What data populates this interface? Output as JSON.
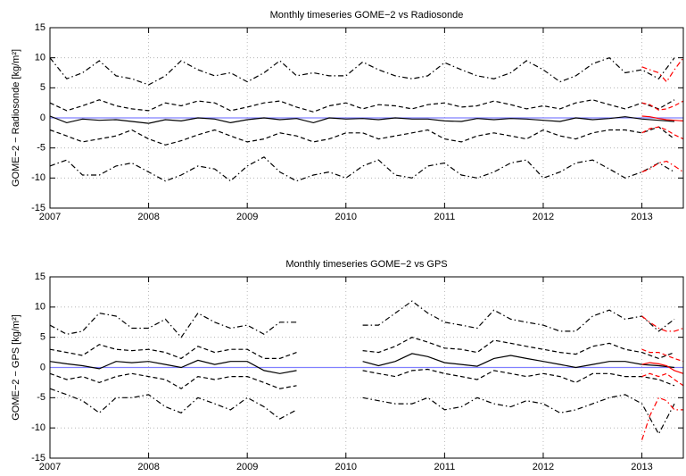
{
  "chart_data": [
    {
      "type": "line",
      "title": "Monthly timeseries GOME−2 vs Radiosonde",
      "y_label": "GOME−2 − Radiosonde [kg/m²]",
      "xlim": [
        2007,
        2013.42
      ],
      "xticks": [
        2007,
        2008,
        2009,
        2010,
        2011,
        2012,
        2013
      ],
      "ylim": [
        -15,
        15
      ],
      "yticks": [
        -15,
        -10,
        -5,
        0,
        5,
        10,
        15
      ],
      "grid": true,
      "hlines": [
        {
          "value": 0,
          "color": "#8080ff"
        }
      ],
      "x": [
        2007,
        2007.17,
        2007.33,
        2007.5,
        2007.67,
        2007.83,
        2008,
        2008.17,
        2008.33,
        2008.5,
        2008.67,
        2008.83,
        2009,
        2009.17,
        2009.33,
        2009.5,
        2009.67,
        2009.83,
        2010,
        2010.17,
        2010.33,
        2010.5,
        2010.67,
        2010.83,
        2011,
        2011.17,
        2011.33,
        2011.5,
        2011.67,
        2011.83,
        2012,
        2012.17,
        2012.33,
        2012.5,
        2012.67,
        2012.83,
        2013,
        2013.17,
        2013.33
      ],
      "series": [
        {
          "color": "#000000",
          "dash": "solid",
          "values": [
            0.3,
            -0.8,
            -0.2,
            -0.4,
            -0.3,
            -0.6,
            -0.9,
            -0.3,
            -0.5,
            0,
            -0.2,
            -0.8,
            -0.3,
            0,
            -0.3,
            -0.1,
            -0.8,
            0,
            -0.2,
            -0.1,
            -0.3,
            0,
            -0.2,
            -0.2,
            -0.5,
            -0.6,
            -0.1,
            -0.3,
            -0.1,
            -0.2,
            -0.4,
            -0.6,
            0,
            -0.3,
            -0.1,
            0.2,
            -0.2,
            -0.4,
            -0.6
          ]
        },
        {
          "color": "#000000",
          "dash": "dashed",
          "values": [
            2.5,
            1.2,
            2.0,
            3.0,
            2.0,
            1.5,
            1.2,
            2.5,
            2.0,
            2.8,
            2.5,
            1.2,
            1.8,
            2.5,
            2.8,
            1.8,
            1.0,
            2.0,
            2.5,
            1.5,
            2.2,
            2.0,
            1.5,
            2.2,
            2.5,
            1.8,
            2.0,
            2.8,
            2.2,
            1.5,
            2.0,
            1.5,
            2.5,
            3.0,
            2.2,
            1.5,
            2.5,
            1.5,
            3.0
          ]
        },
        {
          "color": "#000000",
          "dash": "dashed",
          "values": [
            -2,
            -3,
            -4,
            -3.5,
            -3,
            -2,
            -3.5,
            -4.5,
            -3.8,
            -2.8,
            -2,
            -3,
            -4,
            -3.5,
            -2.5,
            -3,
            -4,
            -3.5,
            -2.5,
            -2.5,
            -3.5,
            -3,
            -2.5,
            -2,
            -3.5,
            -4,
            -3,
            -2.5,
            -3,
            -3.5,
            -2,
            -3,
            -3.5,
            -2.5,
            -2,
            -2,
            -2.5,
            -1.5,
            -3.5
          ]
        },
        {
          "color": "#000000",
          "dash": "dashdot",
          "values": [
            10,
            6.5,
            7.5,
            9.5,
            7,
            6.5,
            5.5,
            7,
            9.5,
            8,
            7,
            7.5,
            6,
            7.5,
            9.5,
            7,
            7.5,
            7,
            7,
            9.3,
            8,
            7,
            6.5,
            7,
            9.2,
            8,
            7,
            6.5,
            7.5,
            9.5,
            8,
            6,
            7,
            9,
            10,
            7.5,
            8,
            6.5,
            10
          ]
        },
        {
          "color": "#000000",
          "dash": "dashdot",
          "values": [
            -8,
            -7,
            -9.5,
            -9.5,
            -8,
            -7.5,
            -9,
            -10.5,
            -9.5,
            -8,
            -8.5,
            -10.5,
            -8,
            -6.5,
            -9,
            -10.5,
            -9.5,
            -9,
            -10,
            -8,
            -7,
            -9.5,
            -10,
            -8,
            -7.5,
            -9.5,
            -10,
            -9,
            -7.5,
            -7,
            -10,
            -9,
            -7.5,
            -7,
            -8.5,
            -10,
            -9,
            -7.5,
            -9
          ]
        },
        {
          "color": "#ff0000",
          "dash": "solid",
          "x": [
            2013,
            2013.08,
            2013.17,
            2013.25,
            2013.33,
            2013.42
          ],
          "values": [
            0.3,
            0.2,
            -0.1,
            -0.3,
            -0.4,
            -0.5
          ]
        },
        {
          "color": "#ff0000",
          "dash": "dashed",
          "x": [
            2013,
            2013.08,
            2013.17,
            2013.25,
            2013.33,
            2013.42
          ],
          "values": [
            2.5,
            2.2,
            1.3,
            1.5,
            2,
            2.8
          ]
        },
        {
          "color": "#ff0000",
          "dash": "dashed",
          "x": [
            2013,
            2013.08,
            2013.17,
            2013.25,
            2013.33,
            2013.42
          ],
          "values": [
            -2.5,
            -1.8,
            -1.5,
            -2,
            -2.8,
            -3.5
          ]
        },
        {
          "color": "#ff0000",
          "dash": "dashdot",
          "x": [
            2013,
            2013.08,
            2013.17,
            2013.25,
            2013.33,
            2013.42
          ],
          "values": [
            8.5,
            8,
            7.5,
            6,
            8,
            10
          ]
        },
        {
          "color": "#ff0000",
          "dash": "dashdot",
          "x": [
            2013,
            2013.08,
            2013.17,
            2013.25,
            2013.33,
            2013.42
          ],
          "values": [
            -9,
            -8.5,
            -7.5,
            -7.2,
            -8,
            -9
          ]
        }
      ]
    },
    {
      "type": "line",
      "title": "Monthly timeseries GOME−2 vs GPS",
      "y_label": "GOME−2 − GPS [kg/m²]",
      "xlim": [
        2007,
        2013.42
      ],
      "xticks": [
        2007,
        2008,
        2009,
        2010,
        2011,
        2012,
        2013
      ],
      "ylim": [
        -15,
        15
      ],
      "yticks": [
        -15,
        -10,
        -5,
        0,
        5,
        10,
        15
      ],
      "grid": true,
      "hlines": [
        {
          "value": 0,
          "color": "#8080ff"
        }
      ],
      "x": [
        2007,
        2007.17,
        2007.33,
        2007.5,
        2007.67,
        2007.83,
        2008,
        2008.17,
        2008.33,
        2008.5,
        2008.67,
        2008.83,
        2009,
        2009.17,
        2009.33,
        2009.5,
        2009.67,
        2009.83,
        2010,
        2010.17,
        2010.33,
        2010.5,
        2010.67,
        2010.83,
        2011,
        2011.17,
        2011.33,
        2011.5,
        2011.67,
        2011.83,
        2012,
        2012.17,
        2012.33,
        2012.5,
        2012.67,
        2012.83,
        2013,
        2013.17,
        2013.33
      ],
      "series": [
        {
          "color": "#000000",
          "dash": "solid",
          "values": [
            1,
            0.6,
            0.3,
            -0.2,
            1,
            0.8,
            1,
            0.5,
            0,
            1.2,
            0.5,
            1,
            1,
            -0.5,
            -1,
            -0.5,
            null,
            null,
            null,
            1,
            0.3,
            1,
            2.3,
            1.8,
            0.8,
            0.5,
            0.2,
            1.5,
            2,
            1.5,
            1,
            0.5,
            0,
            0.5,
            1,
            1,
            0.5,
            0.3,
            0
          ]
        },
        {
          "color": "#000000",
          "dash": "dashed",
          "values": [
            3,
            2.5,
            2,
            3.8,
            3,
            2.8,
            3,
            2.5,
            1.5,
            3.5,
            2.5,
            3,
            3,
            1.5,
            1.5,
            2.5,
            null,
            null,
            null,
            2.8,
            2.5,
            3.5,
            5,
            4.2,
            3.2,
            3,
            2.5,
            4.5,
            4,
            3.5,
            3,
            2.5,
            2.2,
            3.5,
            4,
            3,
            2.5,
            1.5,
            2.5
          ]
        },
        {
          "color": "#000000",
          "dash": "dashed",
          "values": [
            -1,
            -2,
            -1.5,
            -2.5,
            -1.5,
            -1,
            -1.5,
            -2,
            -3.5,
            -1.5,
            -2,
            -1.5,
            -1.5,
            -2.5,
            -3.5,
            -3,
            null,
            null,
            null,
            -0.5,
            -1,
            -1.5,
            -0.5,
            -0.3,
            -1,
            -1.5,
            -2,
            -0.5,
            -1,
            -1.5,
            -1,
            -1.5,
            -2.5,
            -1,
            -1,
            -1.5,
            -1.5,
            -2,
            -3
          ]
        },
        {
          "color": "#000000",
          "dash": "dashdot",
          "values": [
            7,
            5.5,
            6,
            9,
            8.5,
            6.5,
            6.5,
            8,
            5,
            9,
            7.5,
            6.5,
            7,
            5.5,
            7.5,
            7.5,
            null,
            null,
            null,
            7,
            7,
            9,
            11,
            9,
            7.5,
            7,
            6.5,
            9.5,
            8,
            7.5,
            7,
            6,
            6,
            8.5,
            9.5,
            8,
            8.5,
            6,
            8
          ]
        },
        {
          "color": "#000000",
          "dash": "dashdot",
          "values": [
            -3.5,
            -4.5,
            -5.5,
            -7.5,
            -5,
            -5,
            -4.5,
            -6.5,
            -7.5,
            -5,
            -6,
            -7,
            -5,
            -6.5,
            -8.5,
            -7,
            null,
            null,
            null,
            -5,
            -5.5,
            -6,
            -6,
            -5,
            -7,
            -6.5,
            -5,
            -6,
            -6.5,
            -5.5,
            -6,
            -7.5,
            -7,
            -6,
            -5,
            -4.5,
            -6,
            -11,
            -6
          ]
        },
        {
          "color": "#ff0000",
          "dash": "solid",
          "x": [
            2013,
            2013.08,
            2013.17,
            2013.25,
            2013.33,
            2013.42
          ],
          "values": [
            0.5,
            0.8,
            0.6,
            0.3,
            -0.5,
            -1
          ]
        },
        {
          "color": "#ff0000",
          "dash": "dashed",
          "x": [
            2013,
            2013.08,
            2013.17,
            2013.25,
            2013.33,
            2013.42
          ],
          "values": [
            3,
            2.5,
            2.5,
            2,
            1.5,
            1
          ]
        },
        {
          "color": "#ff0000",
          "dash": "dashed",
          "x": [
            2013,
            2013.08,
            2013.17,
            2013.25,
            2013.33,
            2013.42
          ],
          "values": [
            -1.5,
            -1,
            -1.5,
            -1,
            -2,
            -3
          ]
        },
        {
          "color": "#ff0000",
          "dash": "dashdot",
          "x": [
            2013,
            2013.08,
            2013.17,
            2013.25,
            2013.33,
            2013.42
          ],
          "values": [
            8.5,
            7.5,
            6.5,
            6,
            6,
            6.5
          ]
        },
        {
          "color": "#ff0000",
          "dash": "dashdot",
          "x": [
            2013,
            2013.08,
            2013.17,
            2013.25,
            2013.33,
            2013.42
          ],
          "values": [
            -12,
            -8,
            -5,
            -5.5,
            -7,
            -7
          ]
        }
      ]
    }
  ]
}
